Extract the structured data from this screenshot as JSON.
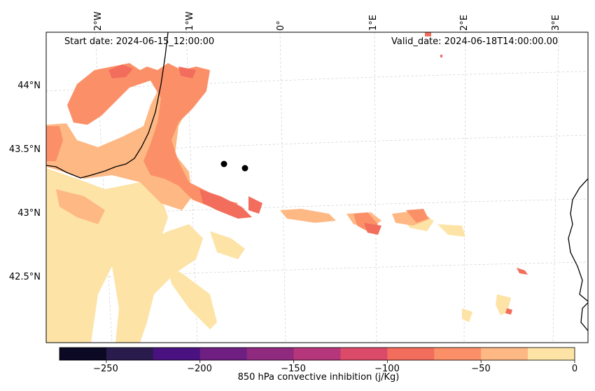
{
  "annotations": {
    "start_label": "Start date: 2024-06-15_12:00:00",
    "valid_label": "Valid_date: 2024-06-18T14:00:00.00"
  },
  "lat_ticks": [
    "44°N",
    "43.5°N",
    "43°N",
    "42.5°N"
  ],
  "lon_ticks": [
    "2°W",
    "1°W",
    "0°",
    "1°E",
    "2°E",
    "3°E"
  ],
  "colorbar": {
    "title": "850 hPa convective inhibition (j/Kg)",
    "ticks": [
      "−250",
      "−200",
      "−150",
      "−100",
      "−50",
      "0"
    ],
    "colors": [
      "#0b0924",
      "#2a1b4d",
      "#4a1280",
      "#6e1f81",
      "#8f2a7e",
      "#b5367a",
      "#dc4a6a",
      "#f26d5c",
      "#fb9068",
      "#fdb884",
      "#fde3a6"
    ],
    "range": [
      -275,
      0
    ],
    "levels": [
      -275,
      -250,
      -225,
      -200,
      -175,
      -150,
      -125,
      -100,
      -75,
      -50,
      -25,
      0
    ]
  },
  "map": {
    "region": "Bay of Biscay / northern Spain / Gulf of Lion",
    "station_markers": 2
  }
}
